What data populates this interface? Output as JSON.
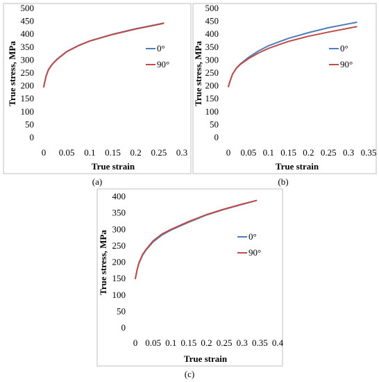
{
  "colors": {
    "series_0": "#4a7ebb",
    "series_90": "#be4b48"
  },
  "chart_data": [
    {
      "id": "a",
      "type": "line",
      "panel_label": "(a)",
      "xlabel": "True strain",
      "ylabel": "True stress, MPa",
      "xlim": [
        0,
        0.3
      ],
      "ylim": [
        0,
        500
      ],
      "xticks": [
        "0",
        "0.05",
        "0.1",
        "0.15",
        "0.2",
        "0.25",
        "0.3"
      ],
      "yticks": [
        "0",
        "50",
        "100",
        "150",
        "200",
        "250",
        "300",
        "350",
        "400",
        "450",
        "500"
      ],
      "legend": [
        "0°",
        "90°"
      ],
      "legend_position": "right",
      "series": [
        {
          "name": "0°",
          "x": [
            0,
            0.005,
            0.01,
            0.015,
            0.02,
            0.03,
            0.05,
            0.075,
            0.1,
            0.15,
            0.2,
            0.25,
            0.26
          ],
          "y": [
            197,
            237,
            262,
            276,
            287,
            305,
            333,
            356,
            374,
            400,
            421,
            439,
            443
          ]
        },
        {
          "name": "90°",
          "x": [
            0,
            0.005,
            0.01,
            0.015,
            0.02,
            0.03,
            0.05,
            0.075,
            0.1,
            0.15,
            0.2,
            0.25,
            0.26
          ],
          "y": [
            196,
            236,
            261,
            275,
            286,
            304,
            332,
            355,
            373,
            399,
            420,
            438,
            442
          ]
        }
      ]
    },
    {
      "id": "b",
      "type": "line",
      "panel_label": "(b)",
      "xlabel": "True strain",
      "ylabel": "True stress, MPa",
      "xlim": [
        0,
        0.35
      ],
      "ylim": [
        0,
        500
      ],
      "xticks": [
        "0",
        "0.05",
        "0.1",
        "0.15",
        "0.2",
        "0.25",
        "0.3",
        "0.35"
      ],
      "yticks": [
        "0",
        "50",
        "100",
        "150",
        "200",
        "250",
        "300",
        "350",
        "400",
        "450",
        "500"
      ],
      "legend": [
        "0°",
        "90°"
      ],
      "legend_position": "right",
      "series": [
        {
          "name": "0°",
          "x": [
            0,
            0.005,
            0.01,
            0.02,
            0.03,
            0.05,
            0.075,
            0.1,
            0.15,
            0.2,
            0.25,
            0.3,
            0.32
          ],
          "y": [
            197,
            222,
            244,
            269,
            285,
            310,
            335,
            355,
            384,
            406,
            425,
            440,
            446
          ]
        },
        {
          "name": "90°",
          "x": [
            0,
            0.005,
            0.01,
            0.02,
            0.03,
            0.05,
            0.075,
            0.1,
            0.15,
            0.2,
            0.25,
            0.3,
            0.32
          ],
          "y": [
            197,
            222,
            244,
            268,
            283,
            305,
            327,
            345,
            372,
            392,
            408,
            423,
            429
          ]
        }
      ]
    },
    {
      "id": "c",
      "type": "line",
      "panel_label": "(c)",
      "xlabel": "True strain",
      "ylabel": "True stress, MPa",
      "xlim": [
        0,
        0.4
      ],
      "ylim": [
        0,
        400
      ],
      "xticks": [
        "0",
        "0.05",
        "0.1",
        "0.15",
        "0.2",
        "0.25",
        "0.3",
        "0.35",
        "0.4"
      ],
      "yticks": [
        "0",
        "50",
        "100",
        "150",
        "200",
        "250",
        "300",
        "350",
        "400"
      ],
      "legend": [
        "0°",
        "90°"
      ],
      "legend_position": "right",
      "series": [
        {
          "name": "0°",
          "x": [
            0,
            0.005,
            0.01,
            0.02,
            0.03,
            0.05,
            0.075,
            0.1,
            0.15,
            0.2,
            0.25,
            0.3,
            0.34
          ],
          "y": [
            150,
            177,
            196,
            221,
            237,
            262,
            283,
            298,
            322,
            344,
            361,
            376,
            388
          ]
        },
        {
          "name": "90°",
          "x": [
            0,
            0.005,
            0.01,
            0.02,
            0.03,
            0.05,
            0.075,
            0.1,
            0.15,
            0.2,
            0.25,
            0.3,
            0.34
          ],
          "y": [
            151,
            178,
            198,
            223,
            239,
            265,
            286,
            300,
            324,
            345,
            362,
            377,
            388
          ]
        }
      ]
    }
  ]
}
